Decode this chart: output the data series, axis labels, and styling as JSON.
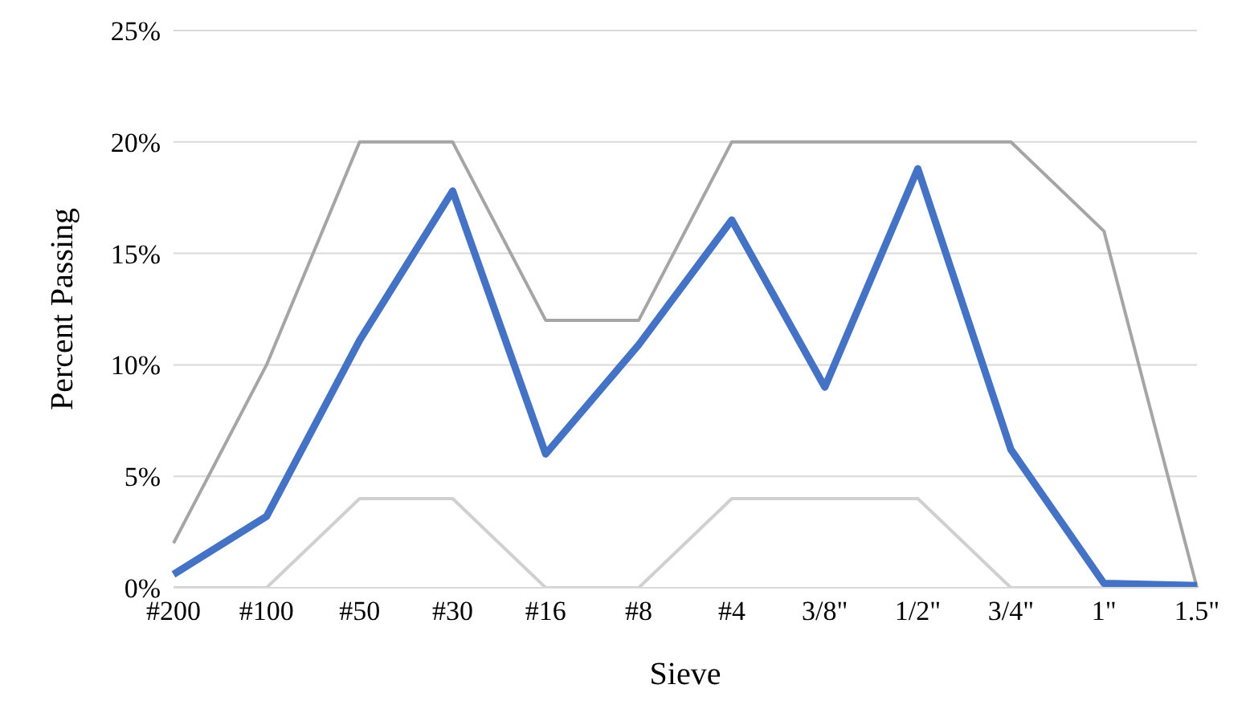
{
  "chart_data": {
    "type": "line",
    "xlabel": "Sieve",
    "ylabel": "Percent Passing",
    "categories": [
      "#200",
      "#100",
      "#50",
      "#30",
      "#16",
      "#8",
      "#4",
      "3/8\"",
      "1/2\"",
      "3/4\"",
      "1\"",
      "1.5\""
    ],
    "series": [
      {
        "color": "#a5a5a5",
        "values": [
          2,
          10,
          20,
          20,
          12,
          12,
          20,
          20,
          20,
          20,
          16,
          0
        ]
      },
      {
        "color": "#d0d0d0",
        "values": [
          0,
          0,
          4,
          4,
          0,
          0,
          4,
          4,
          4,
          0,
          0,
          0
        ]
      },
      {
        "color": "#4472c4",
        "values": [
          0.6,
          3.2,
          11.1,
          17.8,
          6.0,
          10.9,
          16.5,
          9.0,
          18.8,
          6.2,
          0.2,
          0.1
        ]
      }
    ],
    "ylim": [
      0,
      25
    ],
    "yticks": [
      {
        "value": 0,
        "label": "0%"
      },
      {
        "value": 5,
        "label": "5%"
      },
      {
        "value": 10,
        "label": "10%"
      },
      {
        "value": 15,
        "label": "15%"
      },
      {
        "value": 20,
        "label": "20%"
      },
      {
        "value": 25,
        "label": "25%"
      }
    ],
    "grid": "y",
    "marker": "none",
    "line_style": "solid"
  }
}
